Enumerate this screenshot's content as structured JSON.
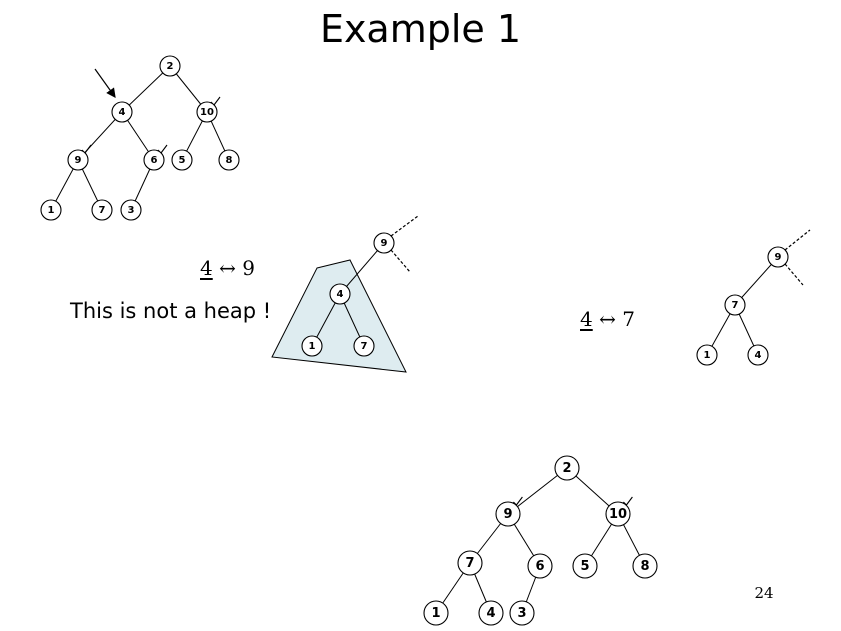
{
  "title": "Example 1",
  "slide_number": "24",
  "note_not_heap": "This is not a heap !",
  "swap_1": {
    "a": "4",
    "arrow": "↔",
    "b": "9"
  },
  "swap_2": {
    "a": "4",
    "arrow": "↔",
    "b": "7"
  },
  "highlight_color": "#deecf0",
  "trees": {
    "initial": {
      "nodes": [
        {
          "id": "n2",
          "label": "2"
        },
        {
          "id": "n4",
          "label": "4"
        },
        {
          "id": "n10",
          "label": "10"
        },
        {
          "id": "n9",
          "label": "9"
        },
        {
          "id": "n6",
          "label": "6"
        },
        {
          "id": "n5",
          "label": "5"
        },
        {
          "id": "n8",
          "label": "8"
        },
        {
          "id": "n1",
          "label": "1"
        },
        {
          "id": "n7",
          "label": "7"
        },
        {
          "id": "n3",
          "label": "3"
        }
      ],
      "edges": [
        [
          "n2",
          "n4"
        ],
        [
          "n2",
          "n10"
        ],
        [
          "n4",
          "n9"
        ],
        [
          "n4",
          "n6"
        ],
        [
          "n10",
          "n5"
        ],
        [
          "n10",
          "n8"
        ],
        [
          "n9",
          "n1"
        ],
        [
          "n9",
          "n7"
        ],
        [
          "n6",
          "n3"
        ]
      ],
      "checked": [
        "n10",
        "n9",
        "n6"
      ],
      "pointer": "n4"
    },
    "after_first_swap": {
      "nodes": [
        {
          "id": "n9",
          "label": "9"
        },
        {
          "id": "n4",
          "label": "4"
        },
        {
          "id": "n1",
          "label": "1"
        },
        {
          "id": "n7",
          "label": "7"
        }
      ],
      "edges": [
        [
          "n9",
          "n4"
        ],
        [
          "n4",
          "n1"
        ],
        [
          "n4",
          "n7"
        ]
      ]
    },
    "after_second_swap": {
      "nodes": [
        {
          "id": "n9",
          "label": "9"
        },
        {
          "id": "n7",
          "label": "7"
        },
        {
          "id": "n1",
          "label": "1"
        },
        {
          "id": "n4",
          "label": "4"
        }
      ],
      "edges": [
        [
          "n9",
          "n7"
        ],
        [
          "n7",
          "n1"
        ],
        [
          "n7",
          "n4"
        ]
      ]
    },
    "final": {
      "nodes": [
        {
          "id": "n2",
          "label": "2"
        },
        {
          "id": "n9",
          "label": "9"
        },
        {
          "id": "n10",
          "label": "10"
        },
        {
          "id": "n7",
          "label": "7"
        },
        {
          "id": "n6",
          "label": "6"
        },
        {
          "id": "n5",
          "label": "5"
        },
        {
          "id": "n8",
          "label": "8"
        },
        {
          "id": "n1",
          "label": "1"
        },
        {
          "id": "n4",
          "label": "4"
        },
        {
          "id": "n3",
          "label": "3"
        }
      ],
      "edges": [
        [
          "n2",
          "n9"
        ],
        [
          "n2",
          "n10"
        ],
        [
          "n9",
          "n7"
        ],
        [
          "n9",
          "n6"
        ],
        [
          "n10",
          "n5"
        ],
        [
          "n10",
          "n8"
        ],
        [
          "n7",
          "n1"
        ],
        [
          "n7",
          "n4"
        ],
        [
          "n6",
          "n3"
        ]
      ],
      "checked": [
        "n9",
        "n10"
      ]
    }
  }
}
